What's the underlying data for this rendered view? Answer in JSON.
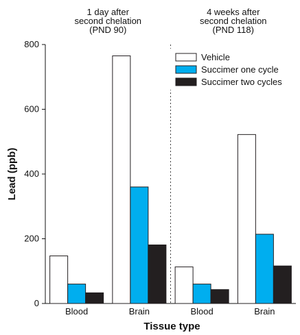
{
  "chart_data": {
    "type": "bar",
    "ylabel": "Lead (ppb)",
    "xlabel": "Tissue type",
    "ylim": [
      0,
      800
    ],
    "yticks": [
      0,
      200,
      400,
      600,
      800
    ],
    "groups": [
      {
        "header": [
          "1 day after",
          "second chelation",
          "(PND 90)"
        ],
        "categories": [
          "Blood",
          "Brain"
        ]
      },
      {
        "header": [
          "4 weeks after",
          "second chelation",
          "(PND 118)"
        ],
        "categories": [
          "Blood",
          "Brain"
        ]
      }
    ],
    "series": [
      {
        "name": "Vehicle",
        "color": "#ffffff",
        "values": [
          147,
          765,
          113,
          522
        ]
      },
      {
        "name": "Succimer one cycle",
        "color": "#00aeef",
        "values": [
          60,
          360,
          60,
          214
        ]
      },
      {
        "name": "Succimer two cycles",
        "color": "#231f20",
        "values": [
          33,
          181,
          43,
          116
        ]
      }
    ],
    "legend_position": "top-right",
    "group_separator": "dashed"
  }
}
